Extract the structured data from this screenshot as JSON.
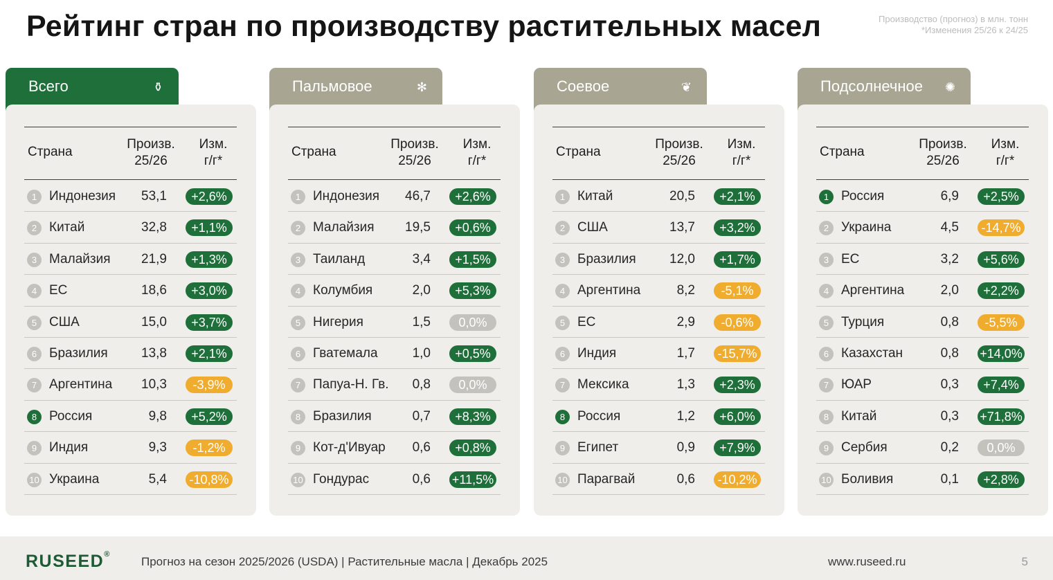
{
  "title": "Рейтинг стран по производству растительных масел",
  "note": [
    "Производство (прогноз) в млн. тонн",
    "*Изменения 25/26 к 24/25"
  ],
  "colors": {
    "accent_green": "#1e6f3a",
    "tab_gray": "#a9a593",
    "positive": "#1e6f3a",
    "negative": "#f0ac2e",
    "zero": "#c3c2bc",
    "card_bg": "#efeeea"
  },
  "columns": {
    "country": "Страна",
    "prod": [
      "Произв.",
      "25/26"
    ],
    "change": [
      "Изм.",
      "г/г*"
    ]
  },
  "panels": [
    {
      "tab": "Всего",
      "icon": "oil-bottle-icon",
      "glyph": "⚱",
      "active": true,
      "rows": [
        {
          "rank": "1",
          "country": "Индонезия",
          "value": "53,1",
          "change": "+2,6%",
          "trend": "up",
          "highlight": false
        },
        {
          "rank": "2",
          "country": "Китай",
          "value": "32,8",
          "change": "+1,1%",
          "trend": "up",
          "highlight": false
        },
        {
          "rank": "3",
          "country": "Малайзия",
          "value": "21,9",
          "change": "+1,3%",
          "trend": "up",
          "highlight": false
        },
        {
          "rank": "4",
          "country": "ЕС",
          "value": "18,6",
          "change": "+3,0%",
          "trend": "up",
          "highlight": false
        },
        {
          "rank": "5",
          "country": "США",
          "value": "15,0",
          "change": "+3,7%",
          "trend": "up",
          "highlight": false
        },
        {
          "rank": "6",
          "country": "Бразилия",
          "value": "13,8",
          "change": "+2,1%",
          "trend": "up",
          "highlight": false
        },
        {
          "rank": "7",
          "country": "Аргентина",
          "value": "10,3",
          "change": "-3,9%",
          "trend": "down",
          "highlight": false
        },
        {
          "rank": "8",
          "country": "Россия",
          "value": "9,8",
          "change": "+5,2%",
          "trend": "up",
          "highlight": true
        },
        {
          "rank": "9",
          "country": "Индия",
          "value": "9,3",
          "change": "-1,2%",
          "trend": "down",
          "highlight": false
        },
        {
          "rank": "10",
          "country": "Украина",
          "value": "5,4",
          "change": "-10,8%",
          "trend": "down",
          "highlight": false
        }
      ]
    },
    {
      "tab": "Пальмовое",
      "icon": "palm-icon",
      "glyph": "✻",
      "active": false,
      "rows": [
        {
          "rank": "1",
          "country": "Индонезия",
          "value": "46,7",
          "change": "+2,6%",
          "trend": "up",
          "highlight": false
        },
        {
          "rank": "2",
          "country": "Малайзия",
          "value": "19,5",
          "change": "+0,6%",
          "trend": "up",
          "highlight": false
        },
        {
          "rank": "3",
          "country": "Таиланд",
          "value": "3,4",
          "change": "+1,5%",
          "trend": "up",
          "highlight": false
        },
        {
          "rank": "4",
          "country": "Колумбия",
          "value": "2,0",
          "change": "+5,3%",
          "trend": "up",
          "highlight": false
        },
        {
          "rank": "5",
          "country": "Нигерия",
          "value": "1,5",
          "change": "0,0%",
          "trend": "flat",
          "highlight": false
        },
        {
          "rank": "6",
          "country": "Гватемала",
          "value": "1,0",
          "change": "+0,5%",
          "trend": "up",
          "highlight": false
        },
        {
          "rank": "7",
          "country": "Папуа-Н. Гв.",
          "value": "0,8",
          "change": "0,0%",
          "trend": "flat",
          "highlight": false
        },
        {
          "rank": "8",
          "country": "Бразилия",
          "value": "0,7",
          "change": "+8,3%",
          "trend": "up",
          "highlight": false
        },
        {
          "rank": "9",
          "country": "Кот-д'Ивуар",
          "value": "0,6",
          "change": "+0,8%",
          "trend": "up",
          "highlight": false
        },
        {
          "rank": "10",
          "country": "Гондурас",
          "value": "0,6",
          "change": "+11,5%",
          "trend": "up",
          "highlight": false
        }
      ]
    },
    {
      "tab": "Соевое",
      "icon": "soy-leaf-icon",
      "glyph": "❦",
      "active": false,
      "rows": [
        {
          "rank": "1",
          "country": "Китай",
          "value": "20,5",
          "change": "+2,1%",
          "trend": "up",
          "highlight": false
        },
        {
          "rank": "2",
          "country": "США",
          "value": "13,7",
          "change": "+3,2%",
          "trend": "up",
          "highlight": false
        },
        {
          "rank": "3",
          "country": "Бразилия",
          "value": "12,0",
          "change": "+1,7%",
          "trend": "up",
          "highlight": false
        },
        {
          "rank": "4",
          "country": "Аргентина",
          "value": "8,2",
          "change": "-5,1%",
          "trend": "down",
          "highlight": false
        },
        {
          "rank": "5",
          "country": "ЕС",
          "value": "2,9",
          "change": "-0,6%",
          "trend": "down",
          "highlight": false
        },
        {
          "rank": "6",
          "country": "Индия",
          "value": "1,7",
          "change": "-15,7%",
          "trend": "down",
          "highlight": false
        },
        {
          "rank": "7",
          "country": "Мексика",
          "value": "1,3",
          "change": "+2,3%",
          "trend": "up",
          "highlight": false
        },
        {
          "rank": "8",
          "country": "Россия",
          "value": "1,2",
          "change": "+6,0%",
          "trend": "up",
          "highlight": true
        },
        {
          "rank": "9",
          "country": "Египет",
          "value": "0,9",
          "change": "+7,9%",
          "trend": "up",
          "highlight": false
        },
        {
          "rank": "10",
          "country": "Парагвай",
          "value": "0,6",
          "change": "-10,2%",
          "trend": "down",
          "highlight": false
        }
      ]
    },
    {
      "tab": "Подсолнечное",
      "icon": "sunflower-icon",
      "glyph": "✺",
      "active": false,
      "rows": [
        {
          "rank": "1",
          "country": "Россия",
          "value": "6,9",
          "change": "+2,5%",
          "trend": "up",
          "highlight": true
        },
        {
          "rank": "2",
          "country": "Украина",
          "value": "4,5",
          "change": "-14,7%",
          "trend": "down",
          "highlight": false
        },
        {
          "rank": "3",
          "country": "ЕС",
          "value": "3,2",
          "change": "+5,6%",
          "trend": "up",
          "highlight": false
        },
        {
          "rank": "4",
          "country": "Аргентина",
          "value": "2,0",
          "change": "+2,2%",
          "trend": "up",
          "highlight": false
        },
        {
          "rank": "5",
          "country": "Турция",
          "value": "0,8",
          "change": "-5,5%",
          "trend": "down",
          "highlight": false
        },
        {
          "rank": "6",
          "country": "Казахстан",
          "value": "0,8",
          "change": "+14,0%",
          "trend": "up",
          "highlight": false
        },
        {
          "rank": "7",
          "country": "ЮАР",
          "value": "0,3",
          "change": "+7,4%",
          "trend": "up",
          "highlight": false
        },
        {
          "rank": "8",
          "country": "Китай",
          "value": "0,3",
          "change": "+71,8%",
          "trend": "up",
          "highlight": false
        },
        {
          "rank": "9",
          "country": "Сербия",
          "value": "0,2",
          "change": "0,0%",
          "trend": "flat",
          "highlight": false
        },
        {
          "rank": "10",
          "country": "Боливия",
          "value": "0,1",
          "change": "+2,8%",
          "trend": "up",
          "highlight": false
        }
      ]
    }
  ],
  "footer": {
    "logo": "RUSEED",
    "logo_mark": "®",
    "caption": "Прогноз на сезон 2025/2026 (USDA)  |  Растительные масла  |  Декабрь 2025",
    "url": "www.ruseed.ru",
    "page": "5"
  }
}
